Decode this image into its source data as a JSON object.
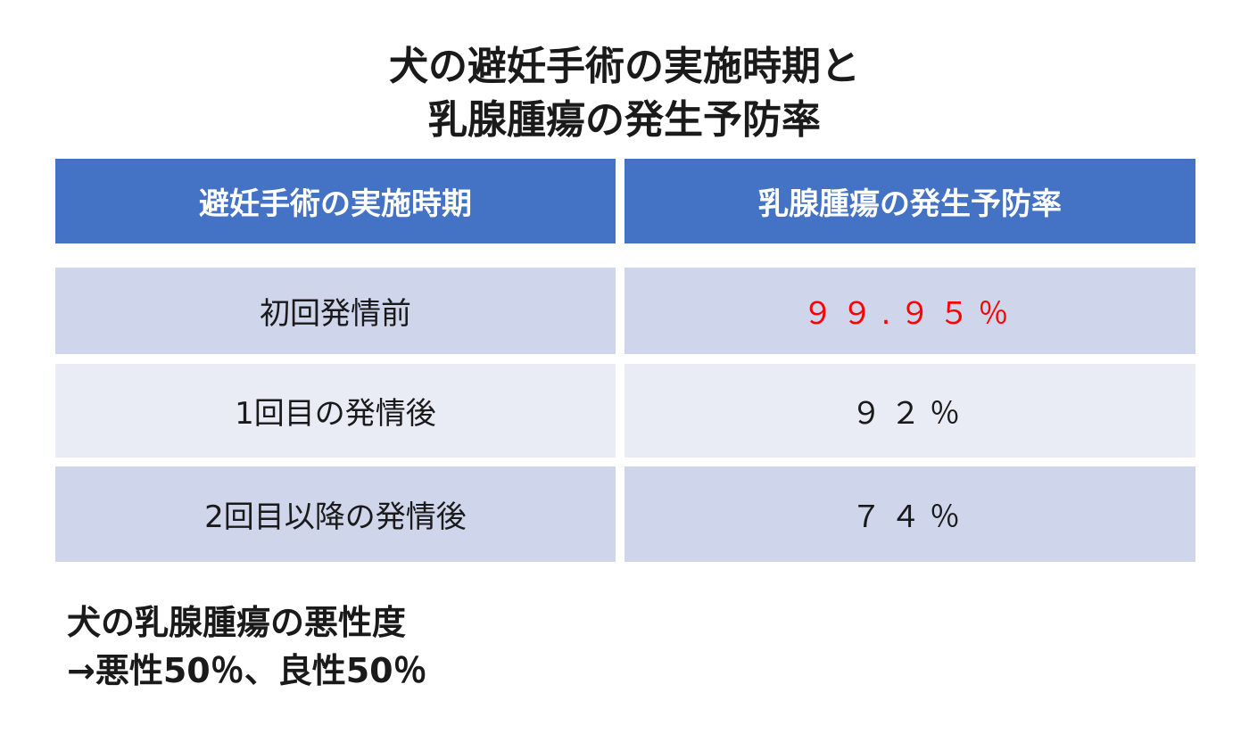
{
  "title": {
    "lines": [
      "犬の避妊手術の実施時期と",
      "乳腺腫瘍の発生予防率"
    ]
  },
  "table": {
    "header": [
      "避妊手術の実施時期",
      "乳腺腫瘍の発生予防率"
    ],
    "rows": [
      [
        "初回発情前",
        "９９.９５％"
      ],
      [
        "1回目の発情後",
        "９２％"
      ],
      [
        "2回目以降の発情後",
        "７４％"
      ]
    ]
  },
  "note": {
    "lines": [
      "犬の乳腺腫瘍の悪性度",
      "→悪性50％、良性50％"
    ]
  }
}
